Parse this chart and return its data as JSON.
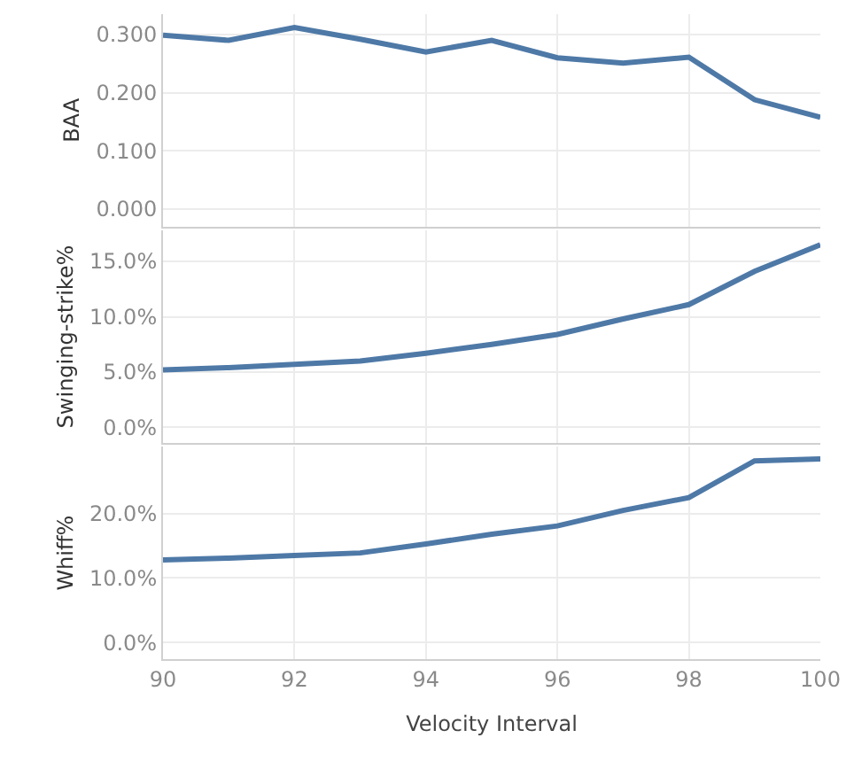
{
  "chart_data": [
    {
      "type": "line",
      "ylabel": "BAA",
      "x": [
        90,
        91,
        92,
        93,
        94,
        95,
        96,
        97,
        98,
        99,
        100
      ],
      "series": [
        {
          "color": "#4e79a7",
          "values": [
            0.299,
            0.29,
            0.312,
            0.292,
            0.27,
            0.29,
            0.26,
            0.251,
            0.261,
            0.188,
            0.158
          ]
        }
      ],
      "xlim": [
        90,
        100
      ],
      "ylim": [
        -0.03,
        0.335
      ],
      "yticks": [
        {
          "value": 0,
          "label": "0.000"
        },
        {
          "value": 0.1,
          "label": "0.100"
        },
        {
          "value": 0.2,
          "label": "0.200"
        },
        {
          "value": 0.3,
          "label": "0.300"
        }
      ],
      "grid": true,
      "tick_labels": "y",
      "marker": "none",
      "line_style": "solid"
    },
    {
      "type": "line",
      "ylabel": "Swinging-strike%",
      "x": [
        90,
        91,
        92,
        93,
        94,
        95,
        96,
        97,
        98,
        99,
        100
      ],
      "series": [
        {
          "color": "#4e79a7",
          "values": [
            5.2,
            5.4,
            5.7,
            6.0,
            6.7,
            7.5,
            8.4,
            9.8,
            11.1,
            14.1,
            16.5
          ]
        }
      ],
      "xlim": [
        90,
        100
      ],
      "ylim": [
        -1.4,
        17.8
      ],
      "yticks": [
        {
          "value": 0,
          "label": "0.0%"
        },
        {
          "value": 5,
          "label": "5.0%"
        },
        {
          "value": 10,
          "label": "10.0%"
        },
        {
          "value": 15,
          "label": "15.0%"
        }
      ],
      "grid": true,
      "tick_labels": "y",
      "marker": "none",
      "line_style": "solid"
    },
    {
      "type": "line",
      "ylabel": "Whiff%",
      "xlabel": "Velocity Interval",
      "x": [
        90,
        91,
        92,
        93,
        94,
        95,
        96,
        97,
        98,
        99,
        100
      ],
      "series": [
        {
          "color": "#4e79a7",
          "values": [
            12.8,
            13.1,
            13.5,
            13.9,
            15.3,
            16.8,
            18.1,
            20.5,
            22.5,
            28.2,
            28.5
          ]
        }
      ],
      "xlim": [
        90,
        100
      ],
      "ylim": [
        -2.6,
        30.4
      ],
      "xticks": [
        90,
        92,
        94,
        96,
        98,
        100
      ],
      "yticks": [
        {
          "value": 0,
          "label": "0.0%"
        },
        {
          "value": 10,
          "label": "10.0%"
        },
        {
          "value": 20,
          "label": "20.0%"
        }
      ],
      "grid": true,
      "marker": "none",
      "line_style": "solid"
    }
  ]
}
